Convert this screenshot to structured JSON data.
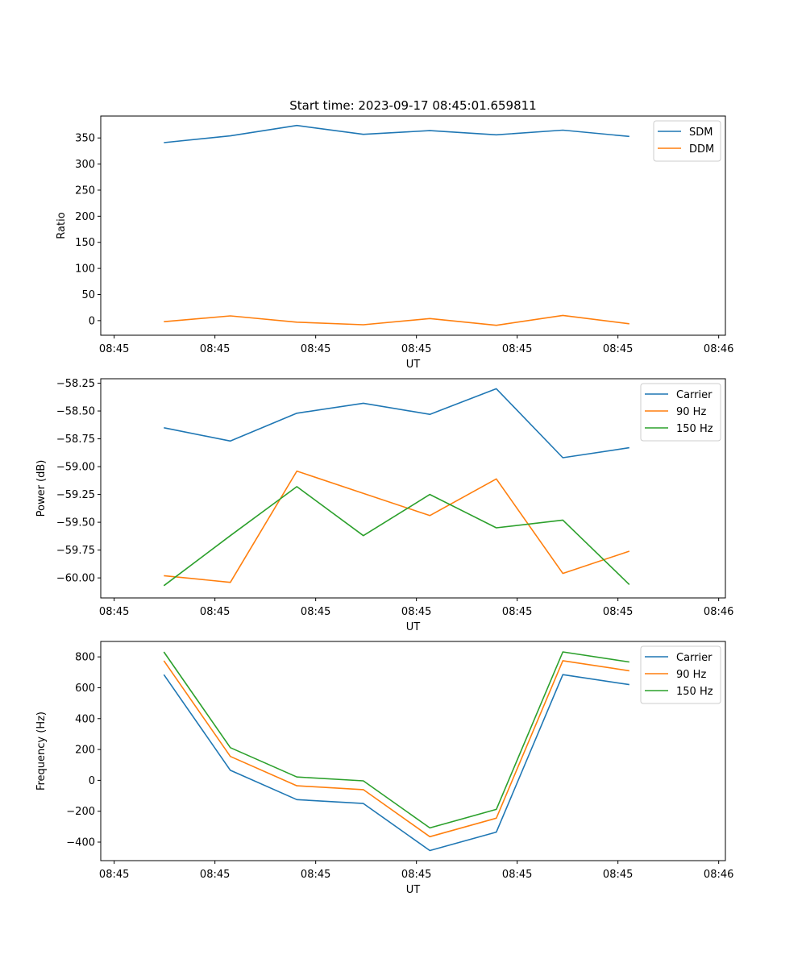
{
  "title": "Start time: 2023-09-17 08:45:01.659811",
  "colors": {
    "blue": "#1f77b4",
    "orange": "#ff7f0e",
    "green": "#2ca02c"
  },
  "chart_data": [
    {
      "type": "line",
      "id": "ratio",
      "ylabel": "Ratio",
      "xlabel": "UT",
      "ylim": [
        -28,
        392
      ],
      "yticks": [
        0,
        50,
        100,
        150,
        200,
        250,
        300,
        350
      ],
      "ytick_labels": [
        "0",
        "50",
        "100",
        "150",
        "200",
        "250",
        "300",
        "350"
      ],
      "xlim": [
        -0.2,
        9.1
      ],
      "xticks": [
        0,
        1.5,
        3,
        4.5,
        6,
        7.5,
        9
      ],
      "xtick_labels": [
        "08:45",
        "08:45",
        "08:45",
        "08:45",
        "08:45",
        "08:45",
        "08:46"
      ],
      "x": [
        0.74,
        1.73,
        2.72,
        3.71,
        4.7,
        5.69,
        6.68,
        7.67
      ],
      "legend_position": "top-right",
      "series": [
        {
          "name": "SDM",
          "color": "#1f77b4",
          "values": [
            341,
            354,
            374,
            357,
            364,
            356,
            365,
            353
          ]
        },
        {
          "name": "DDM",
          "color": "#ff7f0e",
          "values": [
            -2,
            9,
            -3,
            -8,
            4,
            -9,
            10,
            -6
          ]
        }
      ]
    },
    {
      "type": "line",
      "id": "power",
      "ylabel": "Power (dB)",
      "xlabel": "UT",
      "ylim": [
        -60.18,
        -58.21
      ],
      "yticks": [
        -60.0,
        -59.75,
        -59.5,
        -59.25,
        -59.0,
        -58.75,
        -58.5,
        -58.25
      ],
      "ytick_labels": [
        "−60.00",
        "−59.75",
        "−59.50",
        "−59.25",
        "−59.00",
        "−58.75",
        "−58.50",
        "−58.25"
      ],
      "xlim": [
        -0.2,
        9.1
      ],
      "xticks": [
        0,
        1.5,
        3,
        4.5,
        6,
        7.5,
        9
      ],
      "xtick_labels": [
        "08:45",
        "08:45",
        "08:45",
        "08:45",
        "08:45",
        "08:45",
        "08:46"
      ],
      "x": [
        0.74,
        1.73,
        2.72,
        3.71,
        4.7,
        5.69,
        6.68,
        7.67
      ],
      "legend_position": "top-right",
      "series": [
        {
          "name": "Carrier",
          "color": "#1f77b4",
          "values": [
            -58.65,
            -58.77,
            -58.52,
            -58.43,
            -58.53,
            -58.3,
            -58.92,
            -58.83
          ]
        },
        {
          "name": "90 Hz",
          "color": "#ff7f0e",
          "values": [
            -59.98,
            -60.04,
            -59.04,
            -59.24,
            -59.44,
            -59.11,
            -59.96,
            -59.76
          ]
        },
        {
          "name": "150 Hz",
          "color": "#2ca02c",
          "values": [
            -60.07,
            -59.62,
            -59.18,
            -59.62,
            -59.25,
            -59.55,
            -59.48,
            -60.06
          ]
        }
      ]
    },
    {
      "type": "line",
      "id": "frequency",
      "ylabel": "Frequency (Hz)",
      "xlabel": "UT",
      "ylim": [
        -520,
        900
      ],
      "yticks": [
        -400,
        -200,
        0,
        200,
        400,
        600,
        800
      ],
      "ytick_labels": [
        "−400",
        "−200",
        "0",
        "200",
        "400",
        "600",
        "800"
      ],
      "xlim": [
        -0.2,
        9.1
      ],
      "xticks": [
        0,
        1.5,
        3,
        4.5,
        6,
        7.5,
        9
      ],
      "xtick_labels": [
        "08:45",
        "08:45",
        "08:45",
        "08:45",
        "08:45",
        "08:45",
        "08:46"
      ],
      "x": [
        0.74,
        1.73,
        2.72,
        3.71,
        4.7,
        5.69,
        6.68,
        7.67
      ],
      "legend_position": "top-right",
      "series": [
        {
          "name": "Carrier",
          "color": "#1f77b4",
          "values": [
            685,
            65,
            -125,
            -150,
            -455,
            -335,
            685,
            620
          ]
        },
        {
          "name": "90 Hz",
          "color": "#ff7f0e",
          "values": [
            775,
            155,
            -35,
            -60,
            -365,
            -245,
            775,
            710
          ]
        },
        {
          "name": "150 Hz",
          "color": "#2ca02c",
          "values": [
            832,
            212,
            22,
            -3,
            -308,
            -188,
            832,
            767
          ]
        }
      ]
    }
  ]
}
